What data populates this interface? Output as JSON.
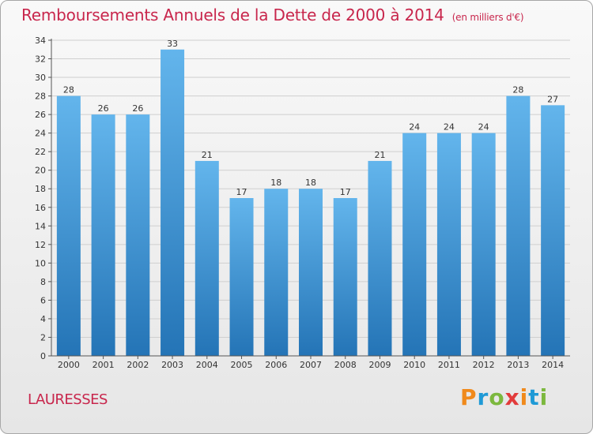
{
  "header": {
    "title": "Remboursements Annuels de la Dette de 2000 à 2014",
    "unit": "(en milliers d'€)"
  },
  "footer": {
    "location": "LAURESSES",
    "brand": "Proxiti"
  },
  "colors": {
    "title": "#c8264c",
    "bar_top": "#63b5ec",
    "bar_bottom": "#2474b6",
    "axis": "#555555",
    "grid": "#cfcfcf"
  },
  "chart_data": {
    "type": "bar",
    "title": "Remboursements Annuels de la Dette de 2000 à 2014",
    "subtitle": "(en milliers d'€)",
    "xlabel": "",
    "ylabel": "",
    "ylim": [
      0,
      34
    ],
    "ytick_step": 2,
    "grid": "horizontal",
    "categories": [
      "2000",
      "2001",
      "2002",
      "2003",
      "2004",
      "2005",
      "2006",
      "2007",
      "2008",
      "2009",
      "2010",
      "2011",
      "2012",
      "2013",
      "2014"
    ],
    "values": [
      28,
      26,
      26,
      33,
      21,
      17,
      18,
      18,
      17,
      21,
      24,
      24,
      24,
      28,
      27
    ]
  }
}
